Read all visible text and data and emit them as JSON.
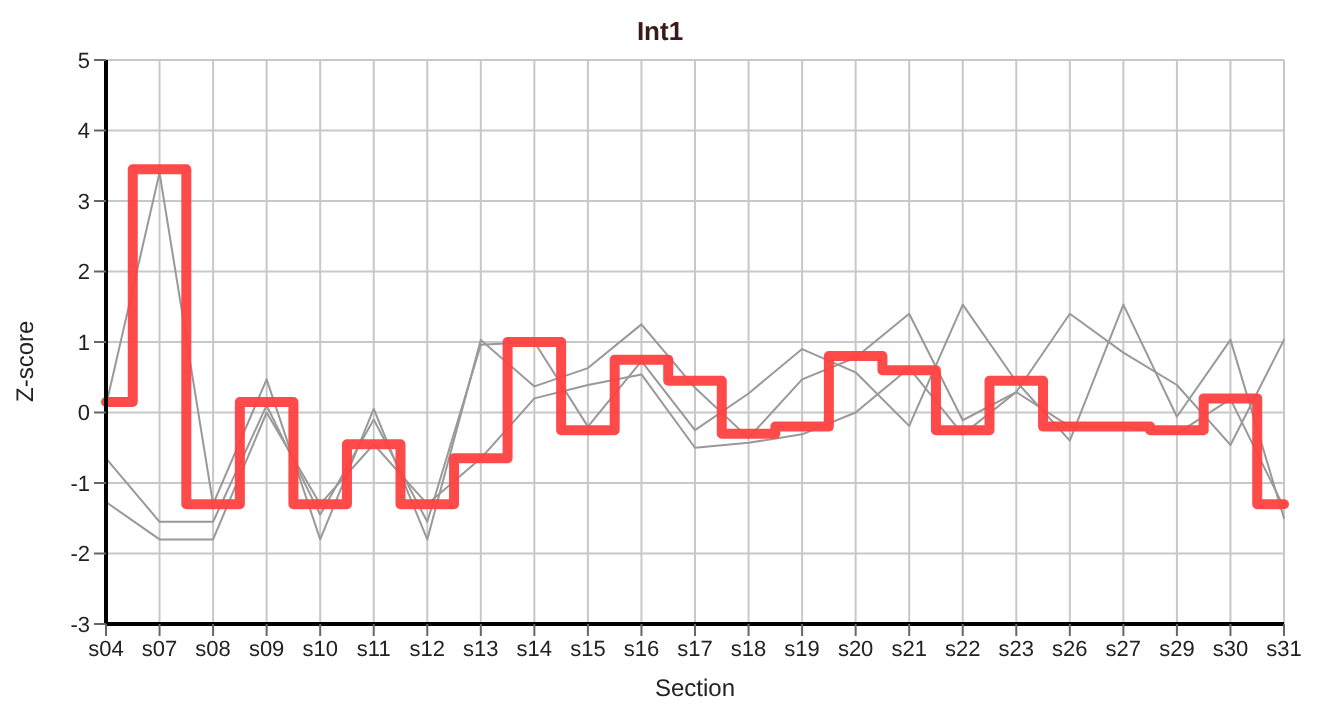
{
  "chart_data": {
    "type": "line",
    "title": "Int1",
    "xlabel": "Section",
    "ylabel": "Z-score",
    "categories": [
      "s04",
      "s07",
      "s08",
      "s09",
      "s10",
      "s11",
      "s12",
      "s13",
      "s14",
      "s15",
      "s16",
      "s17",
      "s18",
      "s19",
      "s20",
      "s21",
      "s22",
      "s23",
      "s26",
      "s27",
      "s29",
      "s30",
      "s31"
    ],
    "series": [
      {
        "type": "line",
        "color": "#999999",
        "values": [
          0.1,
          3.4,
          -1.3,
          0.47,
          -1.8,
          0.05,
          -1.8,
          1.03,
          0.37,
          0.63,
          1.25,
          0.35,
          -0.36,
          0.47,
          0.78,
          1.4,
          -0.11,
          0.29,
          1.4,
          0.85,
          0.39,
          -0.46,
          1.03
        ]
      },
      {
        "type": "line",
        "color": "#999999",
        "values": [
          -0.65,
          -1.55,
          -1.55,
          0.1,
          -1.45,
          -0.1,
          -1.55,
          0.96,
          1.0,
          -0.2,
          0.73,
          -0.25,
          0.27,
          0.9,
          0.57,
          -0.19,
          1.53,
          0.44,
          -0.4,
          1.53,
          -0.06,
          1.03,
          -1.5
        ]
      },
      {
        "type": "line",
        "color": "#999999",
        "values": [
          -1.27,
          -1.8,
          -1.8,
          0,
          -1.3,
          -0.45,
          -1.3,
          -0.65,
          0.2,
          0.39,
          0.54,
          -0.5,
          -0.43,
          -0.31,
          0,
          0.63,
          -0.31,
          0.29,
          -0.2,
          -0.2,
          -0.3,
          0.19,
          -1.35
        ]
      },
      {
        "type": "step",
        "color": "#ff4040",
        "values": [
          0.15,
          3.45,
          -1.3,
          0.15,
          -1.3,
          -0.45,
          -1.3,
          -0.65,
          1.0,
          -0.25,
          0.75,
          0.45,
          -0.3,
          -0.2,
          0.8,
          0.6,
          -0.25,
          0.45,
          -0.2,
          -0.2,
          -0.25,
          0.2,
          -1.3
        ]
      }
    ],
    "ylim": [
      -3,
      5
    ],
    "yticks": [
      -3,
      -2,
      -1,
      0,
      1,
      2,
      3,
      4,
      5
    ],
    "grid": true,
    "legend": false,
    "marker": "none"
  }
}
